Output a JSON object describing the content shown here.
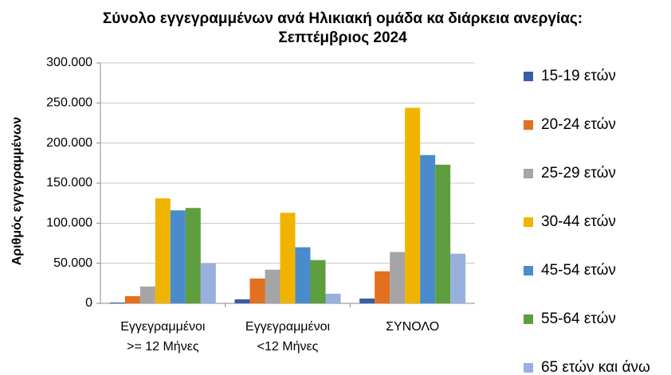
{
  "chart_data": {
    "type": "bar",
    "title": "Σύνολο εγγεγραμμένων  ανά Ηλικιακή ομάδα κα διάρκεια ανεργίας:\nΣεπτέμβριος  2024",
    "y_label": "Αριθμός εγγεγραμμένων",
    "categories": [
      "Εγγεγραμμένοι\n>= 12 Μήνες",
      "Εγγεγραμμένοι\n<12 Μήνες",
      "ΣΥΝΟΛΟ"
    ],
    "series": [
      {
        "name": "15-19 ετών",
        "color": "#3a5da8",
        "values": [
          1000,
          5000,
          6000
        ]
      },
      {
        "name": "20-24 ετών",
        "color": "#e3701f",
        "values": [
          9000,
          31000,
          40000
        ]
      },
      {
        "name": "25-29 ετών",
        "color": "#a5a5a5",
        "values": [
          21000,
          42000,
          64000
        ]
      },
      {
        "name": "30-44 ετών",
        "color": "#f0b400",
        "values": [
          131000,
          113000,
          244000
        ]
      },
      {
        "name": "45-54 ετών",
        "color": "#4a8bcb",
        "values": [
          116000,
          70000,
          185000
        ]
      },
      {
        "name": "55-64 ετών",
        "color": "#5f9e3e",
        "values": [
          119000,
          54000,
          173000
        ]
      },
      {
        "name": "65 ετών και άνω",
        "color": "#98b0de",
        "values": [
          50000,
          12000,
          62000
        ]
      }
    ],
    "ylim": [
      0,
      300000
    ],
    "yticks": [
      0,
      {
        "value": 50000,
        "label": "50.000"
      },
      {
        "value": 100000,
        "label": "100.000"
      },
      {
        "value": 150000,
        "label": "150.000"
      },
      {
        "value": 200000,
        "label": "200.000"
      },
      {
        "value": 250000,
        "label": "250.000"
      },
      {
        "value": 300000,
        "label": "300.000"
      }
    ],
    "grid": true,
    "legend": "right"
  }
}
